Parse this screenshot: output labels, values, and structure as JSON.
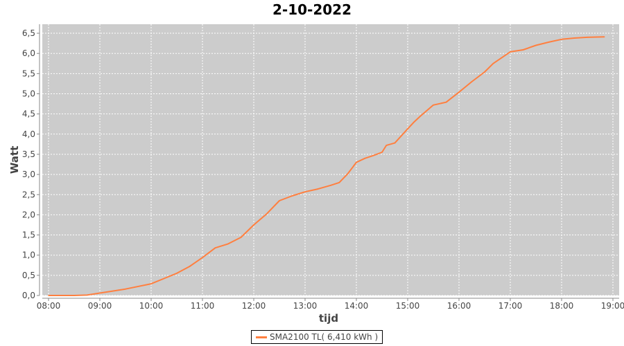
{
  "chart_data": {
    "type": "line",
    "title": "2-10-2022",
    "xlabel": "tijd",
    "ylabel": "Watt",
    "xlim": [
      "07:50",
      "19:15"
    ],
    "ylim": [
      0,
      6.7
    ],
    "x_ticks": [
      "08:00",
      "09:00",
      "10:00",
      "11:00",
      "12:00",
      "13:00",
      "14:00",
      "15:00",
      "16:00",
      "17:00",
      "18:00",
      "19:00"
    ],
    "y_ticks": [
      "0,0",
      "0,5",
      "1,0",
      "1,5",
      "2,0",
      "2,5",
      "3,0",
      "3,5",
      "4,0",
      "4,5",
      "5,0",
      "5,5",
      "6,0",
      "6,5"
    ],
    "grid": true,
    "legend_position": "bottom",
    "background": "#cccccc",
    "series": [
      {
        "name": "SMA2100 TL( 6,410 kWh )",
        "color": "#ff7f3f",
        "x": [
          "08:00",
          "08:30",
          "08:45",
          "09:00",
          "09:30",
          "10:00",
          "10:15",
          "10:30",
          "10:45",
          "11:00",
          "11:15",
          "11:30",
          "11:45",
          "12:00",
          "12:15",
          "12:30",
          "12:45",
          "13:00",
          "13:15",
          "13:30",
          "13:40",
          "13:50",
          "14:00",
          "14:10",
          "14:20",
          "14:30",
          "14:35",
          "14:45",
          "15:00",
          "15:07",
          "15:15",
          "15:30",
          "15:45",
          "16:00",
          "16:15",
          "16:30",
          "16:40",
          "17:00",
          "17:15",
          "17:30",
          "17:45",
          "18:00",
          "18:15",
          "18:30",
          "18:50"
        ],
        "y": [
          0,
          0,
          0.01,
          0.06,
          0.16,
          0.29,
          0.42,
          0.55,
          0.72,
          0.94,
          1.18,
          1.28,
          1.44,
          1.75,
          2.02,
          2.35,
          2.47,
          2.57,
          2.64,
          2.73,
          2.8,
          3.02,
          3.3,
          3.4,
          3.47,
          3.55,
          3.72,
          3.78,
          4.13,
          4.29,
          4.45,
          4.72,
          4.79,
          5.04,
          5.3,
          5.54,
          5.75,
          6.04,
          6.09,
          6.2,
          6.28,
          6.35,
          6.38,
          6.4,
          6.41
        ]
      }
    ]
  }
}
